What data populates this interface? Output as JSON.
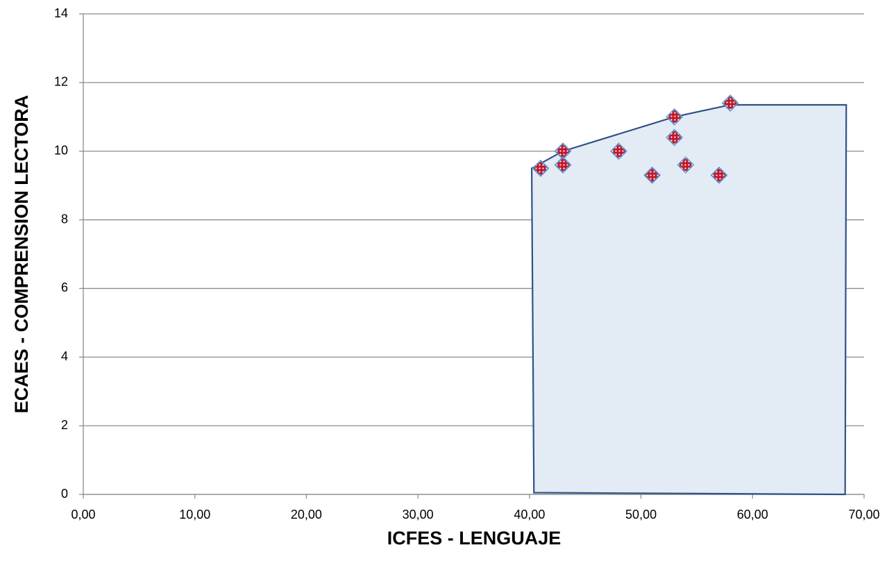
{
  "chart_data": {
    "type": "scatter",
    "x_label": "ICFES - LENGUAJE",
    "y_label": "ECAES - COMPRENSION LECTORA",
    "xlim": [
      0,
      70
    ],
    "xticks": [
      {
        "value": 0,
        "label": "0,00"
      },
      {
        "value": 10,
        "label": "10,00"
      },
      {
        "value": 20,
        "label": "20,00"
      },
      {
        "value": 30,
        "label": "30,00"
      },
      {
        "value": 40,
        "label": "40,00"
      },
      {
        "value": 50,
        "label": "50,00"
      },
      {
        "value": 60,
        "label": "60,00"
      },
      {
        "value": 70,
        "label": "70,00"
      }
    ],
    "ylim": [
      0,
      14
    ],
    "yticks": [
      0,
      2,
      4,
      6,
      8,
      10,
      12,
      14
    ],
    "grid": true,
    "series": [
      {
        "type": "area",
        "color": "#2f5286",
        "fill": "#e3ebf5",
        "x": [
          40.2,
          43,
          53,
          58,
          68.4,
          68.3,
          40.4,
          40.2
        ],
        "values": [
          9.5,
          10,
          11,
          11.35,
          11.35,
          0,
          0.05,
          9.5
        ]
      },
      {
        "type": "scatter",
        "color": "#c0192b",
        "stroke": "#5b8ac6",
        "x": [
          41,
          43,
          43,
          48,
          51,
          53,
          53,
          54,
          57,
          58
        ],
        "values": [
          9.5,
          10.0,
          9.6,
          10.0,
          9.3,
          11.0,
          10.4,
          9.6,
          9.3,
          11.4
        ]
      }
    ]
  }
}
